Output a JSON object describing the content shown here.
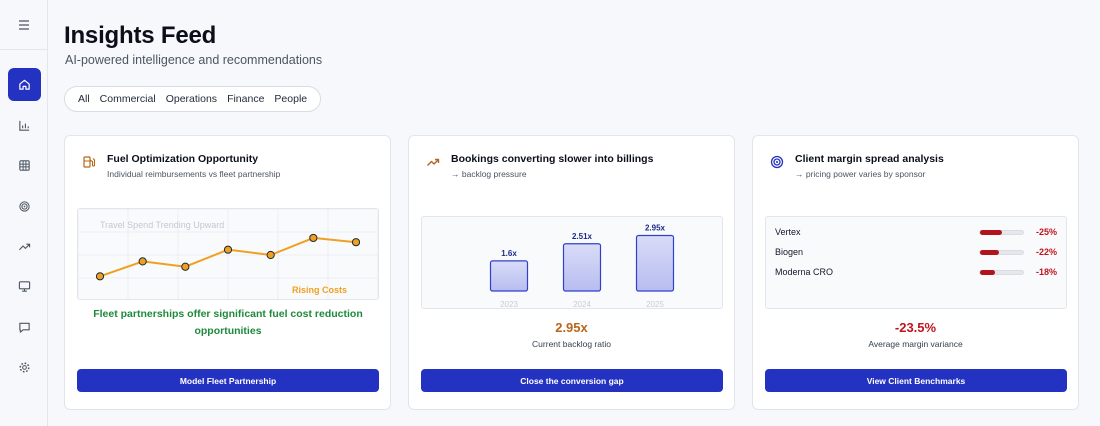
{
  "header": {
    "title": "Insights Feed",
    "subtitle": "AI-powered intelligence and recommendations"
  },
  "filters": [
    "All",
    "Commercial",
    "Operations",
    "Finance",
    "People"
  ],
  "sidebar": {
    "icons": [
      "menu-icon",
      "home-icon",
      "bar-chart-icon",
      "table-icon",
      "target-icon",
      "trending-up-icon",
      "presentation-icon",
      "chat-icon",
      "gear-icon"
    ],
    "active": "home-icon"
  },
  "cards": [
    {
      "title": "Fuel Optimization Opportunity",
      "subtitle": "Individual reimbursements vs fleet partnership",
      "icon": "fuel-pump-icon",
      "chart_title": "Travel Spend Trending Upward",
      "chart_annotation": "Rising Costs",
      "insight": "Fleet partnerships offer significant fuel cost reduction opportunities",
      "button": "Model Fleet Partnership"
    },
    {
      "title": "Bookings converting slower into billings",
      "subtitle": "→ backlog pressure",
      "icon": "trending-up-icon",
      "metric_value": "2.95x",
      "metric_label": "Current backlog ratio",
      "button": "Close the conversion gap"
    },
    {
      "title": "Client margin spread analysis",
      "subtitle": "→ pricing power varies by sponsor",
      "icon": "target-icon",
      "metric_value": "-23.5%",
      "metric_label": "Average margin variance",
      "button": "View Client Benchmarks"
    }
  ],
  "colors": {
    "accent": "#2432c2",
    "positive": "#1e8a3c",
    "negative": "#c0141c",
    "highlight": "#b8651b",
    "line": "#f0a020"
  },
  "chart_data": [
    {
      "type": "line",
      "title": "Travel Spend Trending Upward",
      "annotation": "Rising Costs",
      "x": [
        1,
        2,
        3,
        4,
        5,
        6,
        7
      ],
      "values": [
        1.0,
        2.4,
        1.9,
        3.5,
        3.0,
        4.6,
        4.2
      ],
      "ylim": [
        0,
        6
      ],
      "grid": true
    },
    {
      "type": "bar",
      "categories": [
        "2023",
        "2024",
        "2025"
      ],
      "values": [
        1.6,
        2.51,
        2.95
      ],
      "labels": [
        "1.6x",
        "2.51x",
        "2.95x"
      ],
      "ylim": [
        0,
        3.4
      ]
    },
    {
      "type": "bar",
      "orientation": "horizontal",
      "categories": [
        "Vertex",
        "Biogen",
        "Moderna CRO"
      ],
      "values": [
        -25,
        -22,
        -18
      ],
      "labels": [
        "-25%",
        "-22%",
        "-18%"
      ],
      "xlim": [
        -50,
        0
      ]
    }
  ]
}
